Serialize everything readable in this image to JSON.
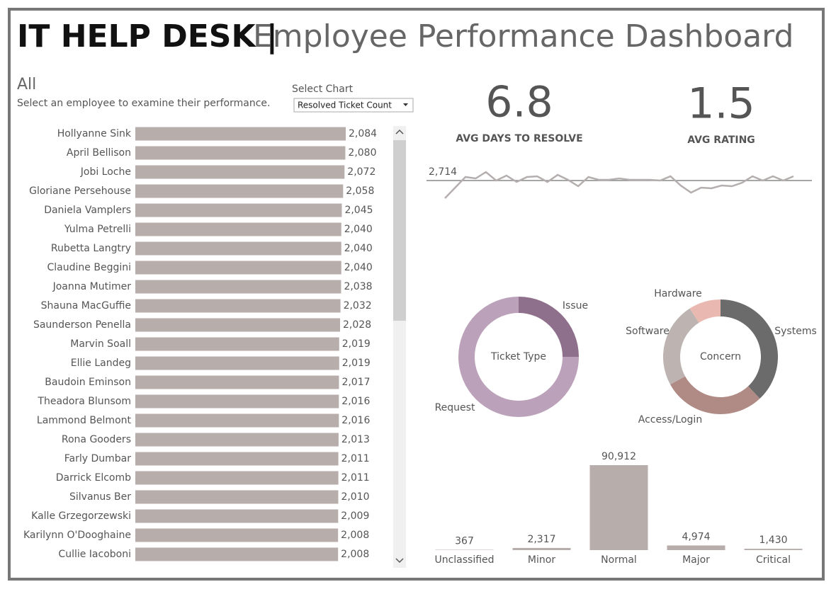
{
  "header": {
    "title_bold": "IT HELP DESK |",
    "title_light": "Employee Performance Dashboard"
  },
  "filter": {
    "selection": "All",
    "instruction": "Select an employee to examine their performance.",
    "select_label": "Select Chart",
    "select_value": "Resolved Ticket Count"
  },
  "kpis": [
    {
      "value": 6.8,
      "label": "AVG DAYS TO RESOLVE"
    },
    {
      "value": 1.5,
      "label": "AVG RATING"
    }
  ],
  "chart_data": [
    {
      "type": "hbar",
      "color": "#b7adab",
      "categories": [
        "Hollyanne Sink",
        "April Bellison",
        "Jobi Loche",
        "Gloriane Persehouse",
        "Daniela Vamplers",
        "Yulma Petrelli",
        "Rubetta Langtry",
        "Claudine Beggini",
        "Joanna Mutimer",
        "Shauna MacGuffie",
        "Saunderson Penella",
        "Marvin Soall",
        "Ellie Landeg",
        "Baudoin Eminson",
        "Theadora Blunsom",
        "Lammond Belmont",
        "Rona Gooders",
        "Farly Dumbar",
        "Darrick Elcomb",
        "Silvanus Ber",
        "Kalle Grzegorzewski",
        "Karilynn O'Dooghaine",
        "Cullie Iacoboni"
      ],
      "values": [
        2084,
        2080,
        2072,
        2058,
        2045,
        2040,
        2040,
        2040,
        2038,
        2032,
        2028,
        2019,
        2019,
        2017,
        2016,
        2016,
        2013,
        2011,
        2011,
        2010,
        2009,
        2008,
        2008
      ],
      "value_labels": [
        "2,084",
        "2,080",
        "2,072",
        "2,058",
        "2,045",
        "2,040",
        "2,040",
        "2,040",
        "2,038",
        "2,032",
        "2,028",
        "2,019",
        "2,019",
        "2,017",
        "2,016",
        "2,016",
        "2,013",
        "2,011",
        "2,011",
        "2,010",
        "2,009",
        "2,008",
        "2,008"
      ]
    },
    {
      "type": "line",
      "color": "#b5aeae",
      "values": [
        2464,
        2614,
        2764,
        2744,
        2834,
        2714,
        2784,
        2694,
        2764,
        2774,
        2694,
        2794,
        2724,
        2634,
        2764,
        2724,
        2724,
        2744,
        2724,
        2724,
        2724,
        2714,
        2774,
        2644,
        2544,
        2614,
        2604,
        2644,
        2634,
        2684,
        2774,
        2714,
        2774,
        2714,
        2774
      ],
      "reference": {
        "value": 2714,
        "label": "2,714"
      }
    },
    {
      "type": "donut",
      "title": "Ticket Type",
      "categories": [
        "Issue",
        "Request"
      ],
      "values": [
        25,
        75
      ],
      "colors": [
        "#8f708c",
        "#bba2ba"
      ]
    },
    {
      "type": "donut",
      "title": "Concern",
      "categories": [
        "Systems",
        "Access/Login",
        "Software",
        "Hardware"
      ],
      "values": [
        38,
        29,
        24,
        9
      ],
      "colors": [
        "#6b6b6b",
        "#b08a84",
        "#bdb4b1",
        "#e9b9b1"
      ]
    },
    {
      "type": "bar",
      "color": "#b7adab",
      "categories": [
        "Unclassified",
        "Minor",
        "Normal",
        "Major",
        "Critical"
      ],
      "values": [
        367,
        2317,
        90912,
        4974,
        1430
      ],
      "value_labels": [
        "367",
        "2,317",
        "90,912",
        "4,974",
        "1,430"
      ]
    }
  ]
}
